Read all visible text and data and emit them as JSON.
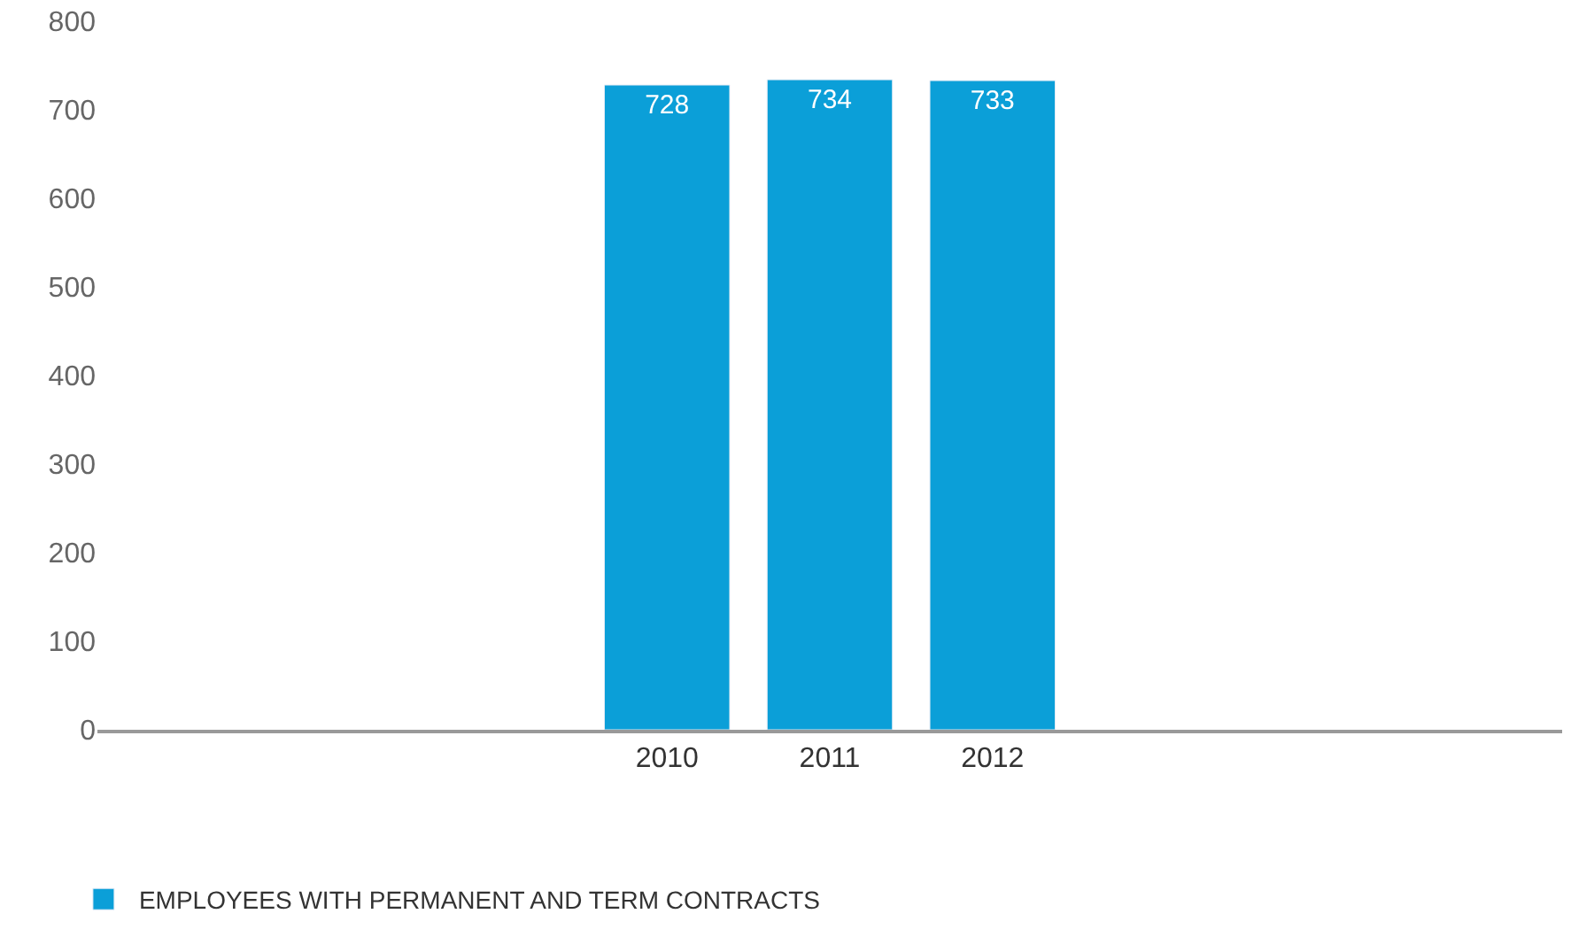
{
  "chart_data": {
    "type": "bar",
    "categories": [
      null,
      null,
      null,
      "2010",
      "2011",
      "2012",
      null,
      null,
      null
    ],
    "series": [
      {
        "name": "EMPLOYEES WITH PERMANENT AND TERM CONTRACTS",
        "color": "#0b9fd8",
        "values": [
          null,
          null,
          null,
          728,
          734,
          733,
          null,
          null,
          null
        ]
      }
    ],
    "ylim": [
      0,
      800
    ],
    "yticks": [
      0,
      100,
      200,
      300,
      400,
      500,
      600,
      700,
      800
    ],
    "data_labels": true,
    "legend": "bottom left"
  }
}
